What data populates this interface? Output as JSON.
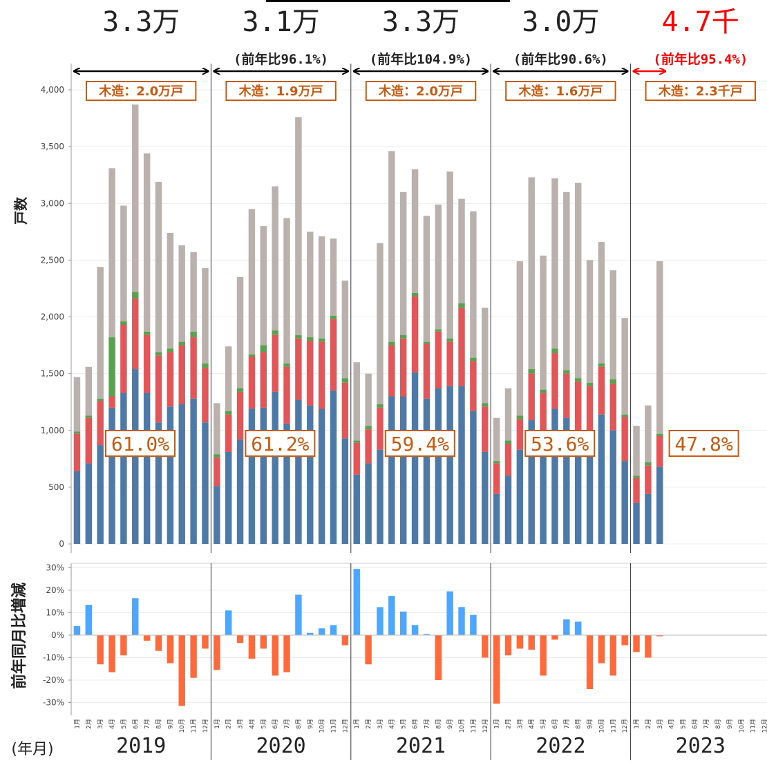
{
  "chart_data": [
    {
      "type": "bar",
      "stacked": true,
      "ylabel": "戸数",
      "xlabel": "(年月)",
      "ylim": [
        0,
        4150
      ],
      "y_ticks": [
        "0",
        "500",
        "1,000",
        "1,500",
        "2,000",
        "2,500",
        "3,000",
        "3,500",
        "4,000"
      ],
      "grid": true,
      "years": [
        {
          "year": "2019",
          "total": "3.3万",
          "yoy": "",
          "wood": "木造：2.0万戸",
          "share": "61.0%",
          "series": [
            {
              "values": [
                640,
                710,
                870,
                1200,
                1330,
                1540,
                1330,
                1070,
                1210,
                1230,
                1280,
                1070
              ]
            },
            {
              "values": [
                970,
                1110,
                1260,
                1300,
                1930,
                2160,
                1840,
                1660,
                1690,
                1750,
                1820,
                1550
              ]
            },
            {
              "values": [
                990,
                1130,
                1280,
                1820,
                1960,
                2220,
                1870,
                1690,
                1720,
                1780,
                1870,
                1590
              ]
            },
            {
              "values": [
                1470,
                1560,
                2440,
                3310,
                2980,
                3870,
                3440,
                3190,
                2740,
                2630,
                2570,
                2430
              ]
            }
          ]
        },
        {
          "year": "2020",
          "total": "3.1万",
          "yoy": "(前年比96.1%)",
          "wood": "木造：1.9万戸",
          "share": "61.2%",
          "series": [
            {
              "values": [
                510,
                810,
                920,
                1190,
                1200,
                1340,
                1060,
                1270,
                1220,
                1190,
                1350,
                930
              ]
            },
            {
              "values": [
                760,
                1140,
                1340,
                1650,
                1690,
                1840,
                1560,
                1810,
                1790,
                1780,
                1980,
                1420
              ]
            },
            {
              "values": [
                790,
                1170,
                1370,
                1670,
                1750,
                1880,
                1590,
                1840,
                1820,
                1810,
                2010,
                1460
              ]
            },
            {
              "values": [
                1240,
                1740,
                2350,
                2950,
                2800,
                3150,
                2870,
                3760,
                2750,
                2710,
                2690,
                2320
              ]
            }
          ]
        },
        {
          "year": "2021",
          "total": "3.3万",
          "yoy": "(前年比104.9%)",
          "wood": "木造：2.0万戸",
          "share": "59.4%",
          "series": [
            {
              "values": [
                610,
                710,
                830,
                1300,
                1300,
                1510,
                1280,
                1370,
                1390,
                1390,
                1170,
                810
              ]
            },
            {
              "values": [
                890,
                1010,
                1200,
                1750,
                1810,
                2180,
                1760,
                1870,
                1780,
                2080,
                1610,
                1210
              ]
            },
            {
              "values": [
                910,
                1040,
                1230,
                1780,
                1840,
                2210,
                1780,
                1890,
                1810,
                2120,
                1640,
                1240
              ]
            },
            {
              "values": [
                1600,
                1500,
                2650,
                3460,
                3100,
                3300,
                2890,
                2990,
                3280,
                3040,
                2930,
                2080
              ]
            }
          ]
        },
        {
          "year": "2022",
          "total": "3.0万",
          "yoy": "(前年比90.6%)",
          "wood": "木造：1.6万戸",
          "share": "53.6%",
          "series": [
            {
              "values": [
                440,
                600,
                830,
                1090,
                960,
                1190,
                1110,
                980,
                900,
                1140,
                1000,
                730
              ]
            },
            {
              "values": [
                710,
                880,
                1100,
                1500,
                1330,
                1680,
                1500,
                1430,
                1390,
                1560,
                1410,
                1120
              ]
            },
            {
              "values": [
                730,
                910,
                1130,
                1540,
                1360,
                1720,
                1530,
                1460,
                1420,
                1590,
                1450,
                1140
              ]
            },
            {
              "values": [
                1110,
                1370,
                2490,
                3230,
                2540,
                3220,
                3100,
                3180,
                2500,
                2660,
                2410,
                1990
              ]
            }
          ]
        },
        {
          "year": "2023",
          "total": "4.7千",
          "yoy": "(前年比95.4%)",
          "wood": "木造：2.3千戸",
          "share": "47.8%",
          "series": [
            {
              "values": [
                360,
                440,
                680
              ]
            },
            {
              "values": [
                580,
                690,
                950
              ]
            },
            {
              "values": [
                600,
                720,
                970
              ]
            },
            {
              "values": [
                1040,
                1220,
                2490
              ]
            }
          ]
        }
      ],
      "colors": [
        "#4e79a7",
        "#e15759",
        "#59a14f",
        "#bab0ac"
      ],
      "highlight_color": "#ff0000",
      "label_color": "#c55a11"
    },
    {
      "type": "bar",
      "ylabel": "前年同月比増減",
      "ylim": [
        -0.33,
        0.31
      ],
      "y_ticks": [
        "30%",
        "20%",
        "10%",
        "0%",
        "-10%",
        "-20%",
        "-30%"
      ],
      "months": [
        "1月",
        "2月",
        "3月",
        "4月",
        "5月",
        "6月",
        "7月",
        "8月",
        "9月",
        "10月",
        "11月",
        "12月"
      ],
      "years": [
        "2019",
        "2020",
        "2021",
        "2022",
        "2023"
      ],
      "values": [
        [
          0.04,
          0.135,
          -0.13,
          -0.165,
          -0.09,
          0.165,
          -0.025,
          -0.07,
          -0.125,
          -0.315,
          -0.19,
          -0.06
        ],
        [
          -0.155,
          0.11,
          -0.035,
          -0.105,
          -0.06,
          -0.18,
          -0.165,
          0.18,
          0.01,
          0.03,
          0.045,
          -0.045
        ],
        [
          0.295,
          -0.13,
          0.125,
          0.175,
          0.105,
          0.045,
          0.005,
          -0.2,
          0.195,
          0.125,
          0.09,
          -0.1
        ],
        [
          -0.305,
          -0.09,
          -0.06,
          -0.065,
          -0.18,
          -0.02,
          0.07,
          0.06,
          -0.24,
          -0.125,
          -0.18,
          -0.045
        ],
        [
          -0.075,
          -0.1,
          -0.005
        ]
      ],
      "pos_color": "#4da6ff",
      "neg_color": "#ff6a3d"
    }
  ]
}
